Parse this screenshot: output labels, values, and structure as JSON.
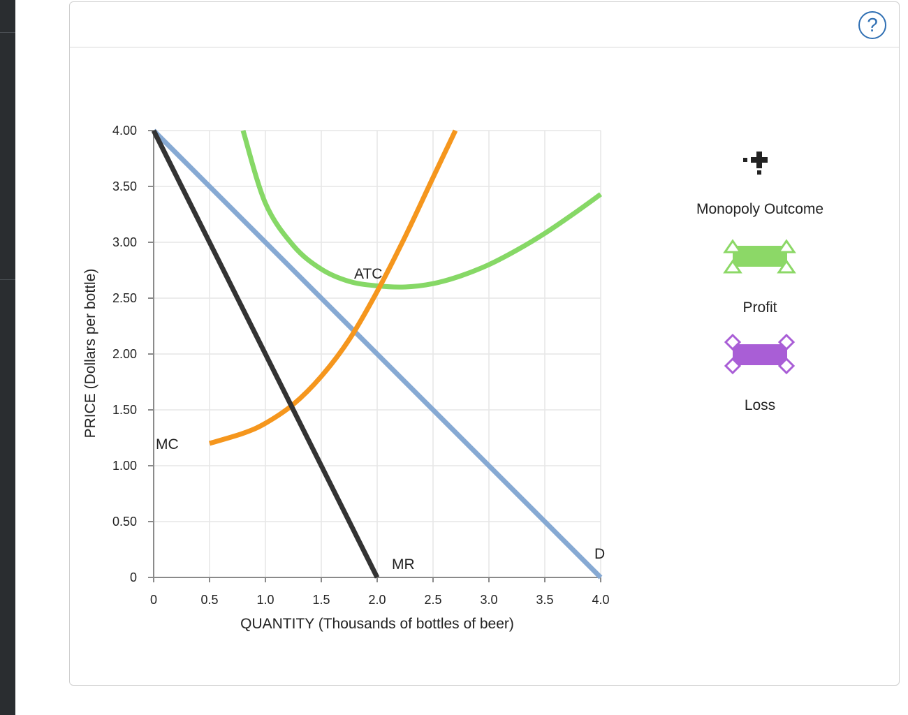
{
  "help_icon": "?",
  "chart_data": {
    "type": "line",
    "xlabel": "QUANTITY (Thousands of bottles of beer)",
    "ylabel": "PRICE (Dollars per bottle)",
    "xlim": [
      0,
      4.0
    ],
    "ylim": [
      0,
      4.0
    ],
    "x_ticks": [
      "0",
      "0.5",
      "1.0",
      "1.5",
      "2.0",
      "2.5",
      "3.0",
      "3.5",
      "4.0"
    ],
    "y_ticks": [
      "0",
      "0.50",
      "1.00",
      "1.50",
      "2.00",
      "2.50",
      "3.00",
      "3.50",
      "4.00"
    ],
    "grid": true,
    "series": [
      {
        "name": "D",
        "color": "#86a9d3",
        "points": [
          [
            0,
            4.0
          ],
          [
            4.0,
            0
          ]
        ]
      },
      {
        "name": "MR",
        "color": "#333333",
        "points": [
          [
            0,
            4.0
          ],
          [
            2.0,
            0
          ]
        ]
      },
      {
        "name": "MC",
        "color": "#f5961d",
        "points": [
          [
            0.5,
            1.2
          ],
          [
            0.8,
            1.29
          ],
          [
            1.0,
            1.38
          ],
          [
            1.25,
            1.55
          ],
          [
            1.5,
            1.8
          ],
          [
            1.75,
            2.13
          ],
          [
            2.0,
            2.56
          ],
          [
            2.25,
            3.05
          ],
          [
            2.5,
            3.58
          ],
          [
            2.7,
            4.0
          ]
        ]
      },
      {
        "name": "ATC",
        "color": "#86d866",
        "points": [
          [
            0.8,
            4.0
          ],
          [
            1.0,
            3.35
          ],
          [
            1.25,
            2.97
          ],
          [
            1.5,
            2.76
          ],
          [
            1.75,
            2.65
          ],
          [
            2.0,
            2.61
          ],
          [
            2.25,
            2.6
          ],
          [
            2.5,
            2.63
          ],
          [
            2.75,
            2.7
          ],
          [
            3.0,
            2.8
          ],
          [
            3.25,
            2.93
          ],
          [
            3.5,
            3.08
          ],
          [
            3.75,
            3.25
          ],
          [
            4.0,
            3.43
          ]
        ]
      }
    ],
    "labels": {
      "atc": "ATC",
      "mc": "MC",
      "mr": "MR",
      "d": "D"
    }
  },
  "palette": {
    "monopoly_outcome_label": "Monopoly Outcome",
    "profit_label": "Profit",
    "loss_label": "Loss",
    "profit_color": "#8cd867",
    "loss_color": "#a95ed6",
    "marker_color": "#222222"
  }
}
